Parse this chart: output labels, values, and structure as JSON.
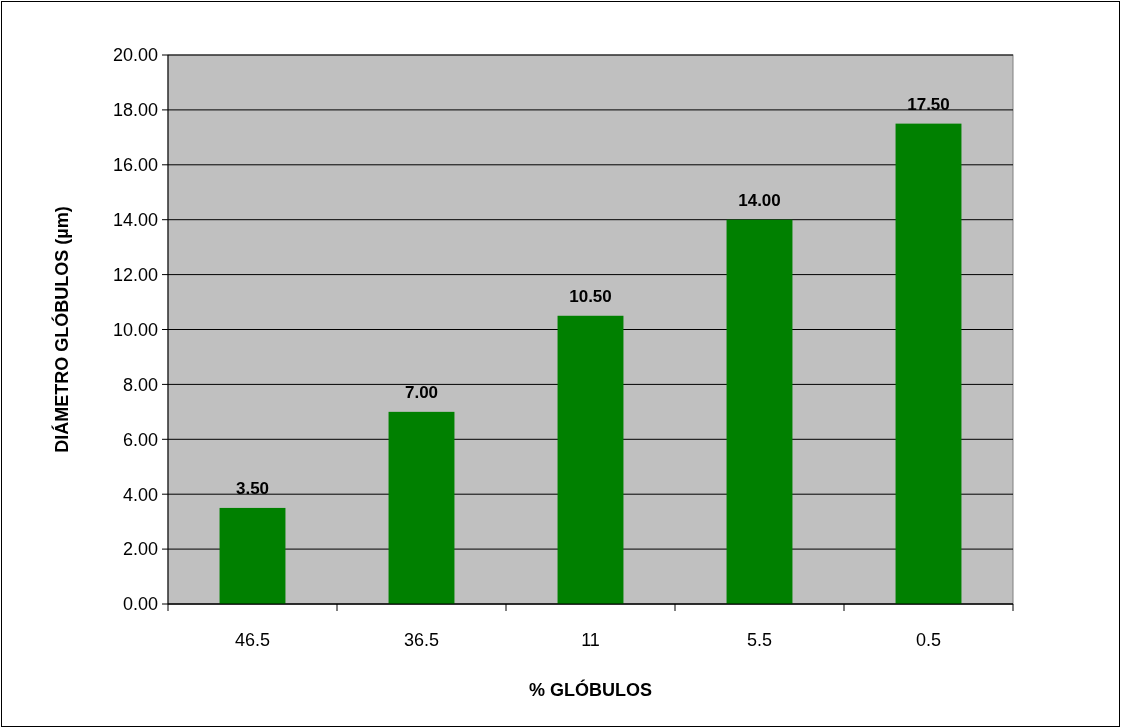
{
  "chart_data": {
    "type": "bar",
    "xlabel": "% GLÓBULOS",
    "ylabel": "DIÁMETRO GLÓBULOS (µm)",
    "categories": [
      "46.5",
      "36.5",
      "11",
      "5.5",
      "0.5"
    ],
    "values": [
      3.5,
      7,
      10.5,
      14,
      17.5
    ],
    "value_labels": [
      "3.50",
      "7.00",
      "10.50",
      "14.00",
      "17.50"
    ],
    "color": "#008000",
    "ylim": [
      0,
      20
    ],
    "yticks": [
      {
        "value": 0,
        "label": "0.00"
      },
      {
        "value": 2,
        "label": "2.00"
      },
      {
        "value": 4,
        "label": "4.00"
      },
      {
        "value": 6,
        "label": "6.00"
      },
      {
        "value": 8,
        "label": "8.00"
      },
      {
        "value": 10,
        "label": "10.00"
      },
      {
        "value": 12,
        "label": "12.00"
      },
      {
        "value": 14,
        "label": "14.00"
      },
      {
        "value": 16,
        "label": "16.00"
      },
      {
        "value": 18,
        "label": "18.00"
      },
      {
        "value": 20,
        "label": "20.00"
      }
    ],
    "grid": "y"
  }
}
